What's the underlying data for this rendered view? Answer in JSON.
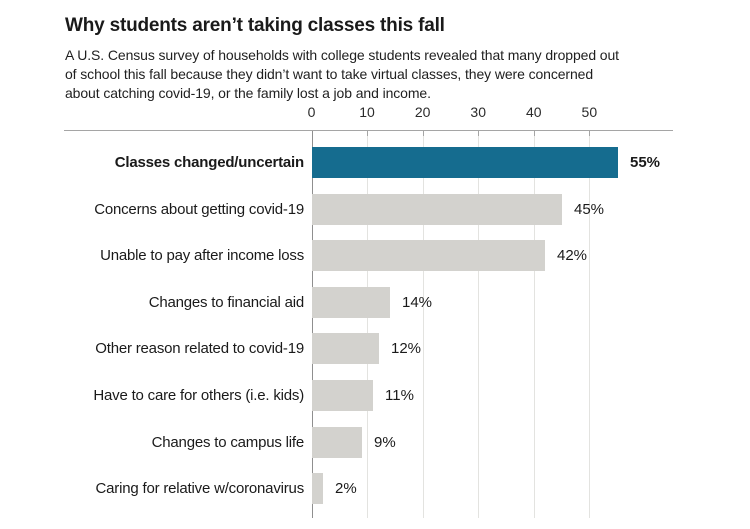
{
  "header": {
    "title": "Why students aren’t taking classes this fall",
    "subtitle": "A U.S. Census survey of households with college students revealed that many dropped out of school this fall because they didn’t want to take virtual classes, they were concerned about catching covid-19, or the family lost a job and income."
  },
  "chart_data": {
    "type": "bar",
    "orientation": "horizontal",
    "title": "Why students aren’t taking classes this fall",
    "categories": [
      "Classes changed/uncertain",
      "Concerns about getting covid-19",
      "Unable to pay after income loss",
      "Changes to financial aid",
      "Other reason related to covid-19",
      "Have to care for others (i.e. kids)",
      "Changes to campus life",
      "Caring for relative w/coronavirus"
    ],
    "values": [
      55,
      45,
      42,
      14,
      12,
      11,
      9,
      2
    ],
    "value_labels": [
      "55%",
      "45%",
      "42%",
      "14%",
      "12%",
      "11%",
      "9%",
      "2%"
    ],
    "highlighted_index": 0,
    "axis_ticks": [
      0,
      10,
      20,
      30,
      40,
      50
    ],
    "axis_position": "top",
    "xlim": [
      0,
      55
    ],
    "grid": true,
    "legend": "none",
    "colors": {
      "highlight_bar": "#156c8f",
      "default_bar": "#d3d2ce",
      "gridline": "#e3e3e0",
      "baseline": "#8f8f8f",
      "axis_line": "#a5a5a5",
      "text": "#1a1a1a"
    }
  }
}
